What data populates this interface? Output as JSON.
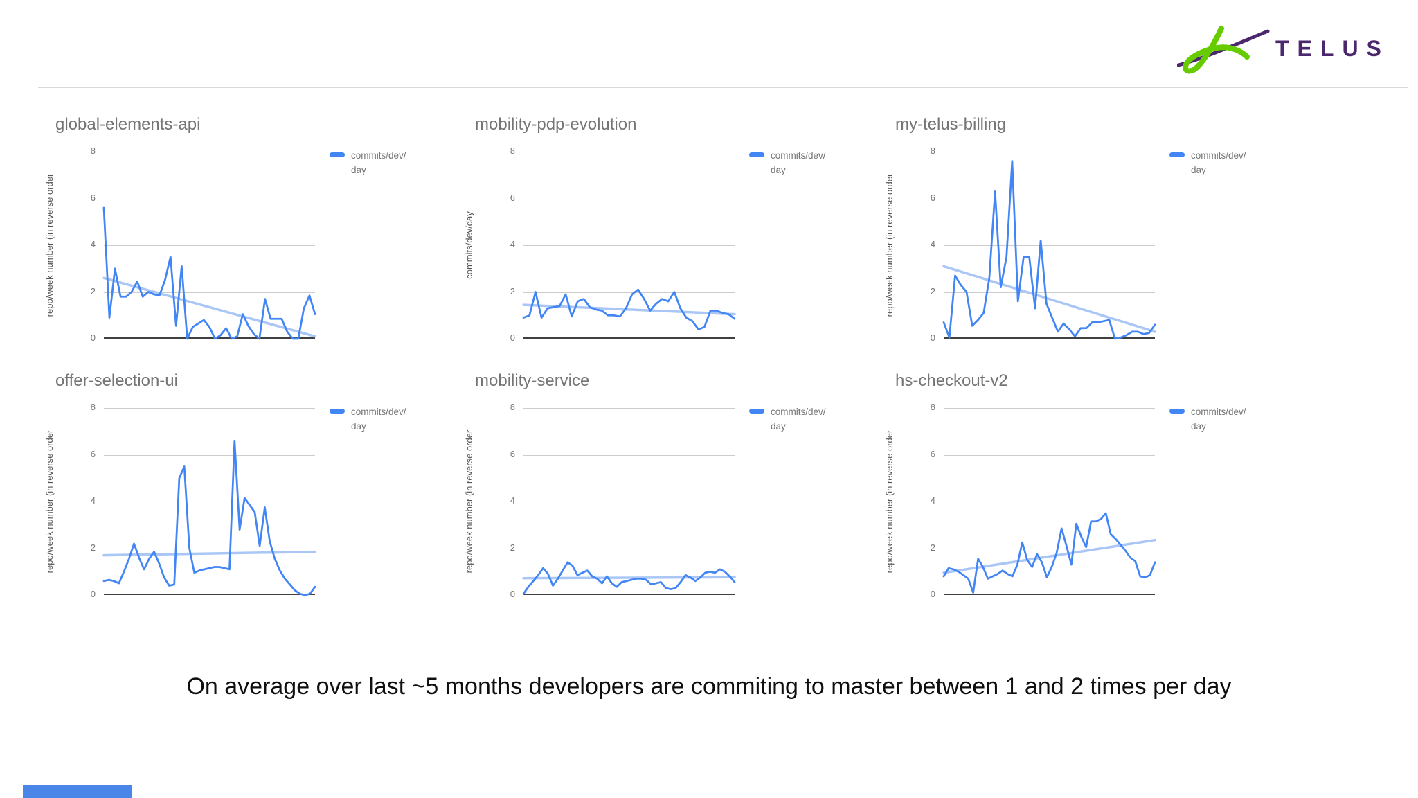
{
  "header": {
    "logo_text": "TELUS",
    "logo_purple": "#4b286d",
    "logo_green": "#66cc00"
  },
  "caption": "On average over last ~5 months developers are commiting to master between 1 and 2 times per day",
  "decor": {
    "bottom_bar_color": "#4a86e8"
  },
  "style": {
    "series_color": "#4285f4",
    "trend_color": "#a9c6f7",
    "grid_color": "#cccccc",
    "axis_color": "#404040"
  },
  "chart_data": [
    {
      "type": "line",
      "title": "global-elements-api",
      "ylabel": "repo/week number (in reverse order",
      "legend": "commits/dev/day",
      "legend_position": "right",
      "grid": true,
      "ylim": [
        0,
        8
      ],
      "yticks": [
        0,
        2,
        4,
        6,
        8
      ],
      "x_axis": "weeks (unlabeled)",
      "values": [
        5.6,
        0.9,
        3.0,
        1.8,
        1.8,
        2.0,
        2.45,
        1.8,
        2.0,
        1.9,
        1.85,
        2.5,
        3.5,
        0.55,
        3.1,
        0.0,
        0.5,
        0.65,
        0.8,
        0.5,
        0.0,
        0.15,
        0.45,
        0.0,
        0.1,
        1.05,
        0.55,
        0.2,
        0.0,
        1.7,
        0.85,
        0.85,
        0.85,
        0.3,
        0.0,
        0.0,
        1.3,
        1.85,
        1.05
      ],
      "trend": [
        2.6,
        0.1
      ]
    },
    {
      "type": "line",
      "title": "mobility-pdp-evolution",
      "ylabel": "commits/dev/day",
      "legend": "commits/dev/day",
      "legend_position": "right",
      "grid": true,
      "ylim": [
        0,
        8
      ],
      "yticks": [
        0,
        2,
        4,
        6,
        8
      ],
      "x_axis": "weeks (unlabeled)",
      "values": [
        0.9,
        1.0,
        2.0,
        0.9,
        1.3,
        1.35,
        1.4,
        1.9,
        0.95,
        1.6,
        1.7,
        1.35,
        1.25,
        1.2,
        1.0,
        1.0,
        0.95,
        1.3,
        1.9,
        2.1,
        1.7,
        1.2,
        1.5,
        1.7,
        1.6,
        2.0,
        1.3,
        0.9,
        0.75,
        0.4,
        0.5,
        1.2,
        1.2,
        1.1,
        1.05,
        0.85
      ],
      "trend": [
        1.45,
        1.05
      ]
    },
    {
      "type": "line",
      "title": "my-telus-billing",
      "ylabel": "repo/week number (in reverse order",
      "legend": "commits/dev/day",
      "legend_position": "right",
      "grid": true,
      "ylim": [
        0,
        8
      ],
      "yticks": [
        0,
        2,
        4,
        6,
        8
      ],
      "x_axis": "weeks (unlabeled)",
      "values": [
        0.7,
        0.05,
        2.7,
        2.3,
        2.0,
        0.55,
        0.8,
        1.1,
        2.6,
        6.3,
        2.2,
        3.5,
        7.6,
        1.6,
        3.5,
        3.5,
        1.3,
        4.2,
        1.5,
        0.9,
        0.3,
        0.65,
        0.4,
        0.1,
        0.45,
        0.45,
        0.7,
        0.7,
        0.75,
        0.8,
        0.0,
        0.05,
        0.15,
        0.3,
        0.3,
        0.2,
        0.25,
        0.6
      ],
      "trend": [
        3.1,
        0.3
      ]
    },
    {
      "type": "line",
      "title": "offer-selection-ui",
      "ylabel": "repo/week number (in reverse order",
      "legend": "commits/dev/day",
      "legend_position": "right",
      "grid": true,
      "ylim": [
        0,
        8
      ],
      "yticks": [
        0,
        2,
        4,
        6,
        8
      ],
      "x_axis": "weeks (unlabeled)",
      "values": [
        0.6,
        0.65,
        0.6,
        0.5,
        1.0,
        1.55,
        2.2,
        1.6,
        1.1,
        1.55,
        1.85,
        1.35,
        0.75,
        0.4,
        0.45,
        5.0,
        5.5,
        2.0,
        0.95,
        1.05,
        1.1,
        1.15,
        1.2,
        1.2,
        1.15,
        1.1,
        6.6,
        2.8,
        4.15,
        3.85,
        3.55,
        2.1,
        3.75,
        2.3,
        1.55,
        1.05,
        0.7,
        0.45,
        0.2,
        0.05,
        0.0,
        0.05,
        0.35
      ],
      "trend": [
        1.7,
        1.85
      ]
    },
    {
      "type": "line",
      "title": "mobility-service",
      "ylabel": "repo/week number (in reverse order",
      "legend": "commits/dev/day",
      "legend_position": "right",
      "grid": true,
      "ylim": [
        0,
        8
      ],
      "yticks": [
        0,
        2,
        4,
        6,
        8
      ],
      "x_axis": "weeks (unlabeled)",
      "values": [
        0.05,
        0.35,
        0.6,
        0.85,
        1.15,
        0.9,
        0.4,
        0.7,
        1.05,
        1.4,
        1.25,
        0.85,
        0.95,
        1.05,
        0.8,
        0.7,
        0.5,
        0.8,
        0.5,
        0.35,
        0.55,
        0.6,
        0.65,
        0.7,
        0.7,
        0.65,
        0.45,
        0.5,
        0.55,
        0.3,
        0.25,
        0.3,
        0.55,
        0.85,
        0.75,
        0.6,
        0.75,
        0.95,
        1.0,
        0.95,
        1.1,
        1.0,
        0.8,
        0.55
      ],
      "trend": [
        0.72,
        0.76
      ]
    },
    {
      "type": "line",
      "title": "hs-checkout-v2",
      "ylabel": "repo/week number (in reverse order",
      "legend": "commits/dev/day",
      "legend_position": "right",
      "grid": true,
      "ylim": [
        0,
        8
      ],
      "yticks": [
        0,
        2,
        4,
        6,
        8
      ],
      "x_axis": "weeks (unlabeled)",
      "values": [
        0.8,
        1.15,
        1.1,
        1.0,
        0.85,
        0.7,
        0.1,
        1.55,
        1.2,
        0.7,
        0.8,
        0.9,
        1.05,
        0.9,
        0.8,
        1.3,
        2.25,
        1.5,
        1.2,
        1.75,
        1.4,
        0.75,
        1.2,
        1.8,
        2.85,
        2.1,
        1.3,
        3.05,
        2.5,
        2.05,
        3.15,
        3.15,
        3.25,
        3.5,
        2.6,
        2.4,
        2.15,
        1.9,
        1.6,
        1.45,
        0.8,
        0.75,
        0.85,
        1.4
      ],
      "trend": [
        0.95,
        2.35
      ]
    }
  ]
}
